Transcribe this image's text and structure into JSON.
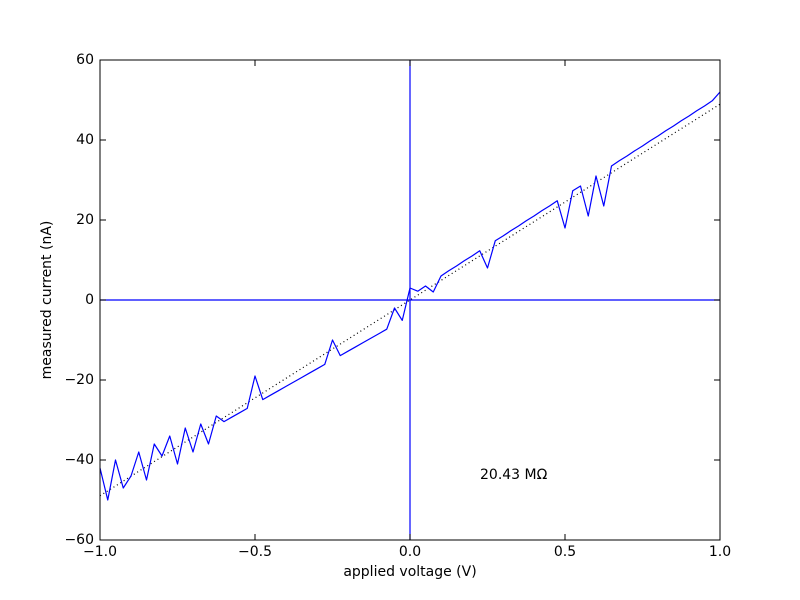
{
  "chart_data": {
    "type": "line",
    "xlabel": "applied voltage (V)",
    "ylabel": "measured current (nA)",
    "annotation": "20.43 MΩ",
    "xlim": [
      -1,
      1
    ],
    "ylim": [
      -60,
      60
    ],
    "xticks": [
      {
        "value": -1,
        "label": "−1.0"
      },
      {
        "value": -0.5,
        "label": "−0.5"
      },
      {
        "value": 0,
        "label": "0.0"
      },
      {
        "value": 0.5,
        "label": "0.5"
      },
      {
        "value": 1,
        "label": "1.0"
      }
    ],
    "yticks": [
      {
        "value": -60,
        "label": "−60"
      },
      {
        "value": -40,
        "label": "−40"
      },
      {
        "value": -20,
        "label": "−20"
      },
      0,
      20,
      40,
      60
    ],
    "x": [
      -1,
      -0.975,
      -0.95,
      -0.925,
      -0.9,
      -0.875,
      -0.85,
      -0.825,
      -0.8,
      -0.775,
      -0.75,
      -0.725,
      -0.7,
      -0.675,
      -0.65,
      -0.625,
      -0.6,
      -0.575,
      -0.55,
      -0.525,
      -0.5,
      -0.475,
      -0.45,
      -0.425,
      -0.4,
      -0.375,
      -0.35,
      -0.325,
      -0.3,
      -0.275,
      -0.25,
      -0.225,
      -0.2,
      -0.175,
      -0.15,
      -0.125,
      -0.1,
      -0.075,
      -0.05,
      -0.025,
      0,
      0.025,
      0.05,
      0.075,
      0.1,
      0.125,
      0.15,
      0.175,
      0.2,
      0.225,
      0.25,
      0.275,
      0.3,
      0.325,
      0.35,
      0.375,
      0.4,
      0.425,
      0.45,
      0.475,
      0.5,
      0.525,
      0.55,
      0.575,
      0.6,
      0.625,
      0.65,
      0.675,
      0.7,
      0.725,
      0.75,
      0.775,
      0.8,
      0.825,
      0.85,
      0.875,
      0.9,
      0.925,
      0.95,
      0.975,
      1
    ],
    "series": [
      {
        "color": "#0000ff",
        "values": [
          -42,
          -50,
          -40,
          -47,
          -44,
          -38,
          -45,
          -36,
          -39,
          -34,
          -41,
          -32,
          -38,
          -31,
          -36,
          -29,
          -30.4,
          -29.3,
          -28.2,
          -27.1,
          -19,
          -24.9,
          -23.8,
          -22.7,
          -21.6,
          -20.5,
          -19.4,
          -18.3,
          -17.2,
          -16.1,
          -10,
          -13.9,
          -12.8,
          -11.7,
          -10.6,
          -9.5,
          -8.4,
          -7.3,
          -2,
          -5.1,
          3,
          2.2,
          3.5,
          2,
          6,
          7.3,
          8.5,
          9.8,
          11,
          12.3,
          8,
          14.8,
          16,
          17.3,
          18.5,
          19.8,
          21,
          22.3,
          23.5,
          24.8,
          18,
          27.3,
          28.5,
          21,
          31,
          23.5,
          33.5,
          34.8,
          36,
          37.3,
          38.5,
          39.8,
          41,
          42.3,
          43.5,
          44.8,
          46,
          47.3,
          48.5,
          49.8,
          52
        ]
      }
    ],
    "fit": {
      "color": "#000000",
      "x": [
        -1,
        1
      ],
      "values": [
        -48.95,
        48.95
      ]
    },
    "reference_lines": {
      "color": "#0000ff",
      "x": 0,
      "y": 0
    }
  }
}
